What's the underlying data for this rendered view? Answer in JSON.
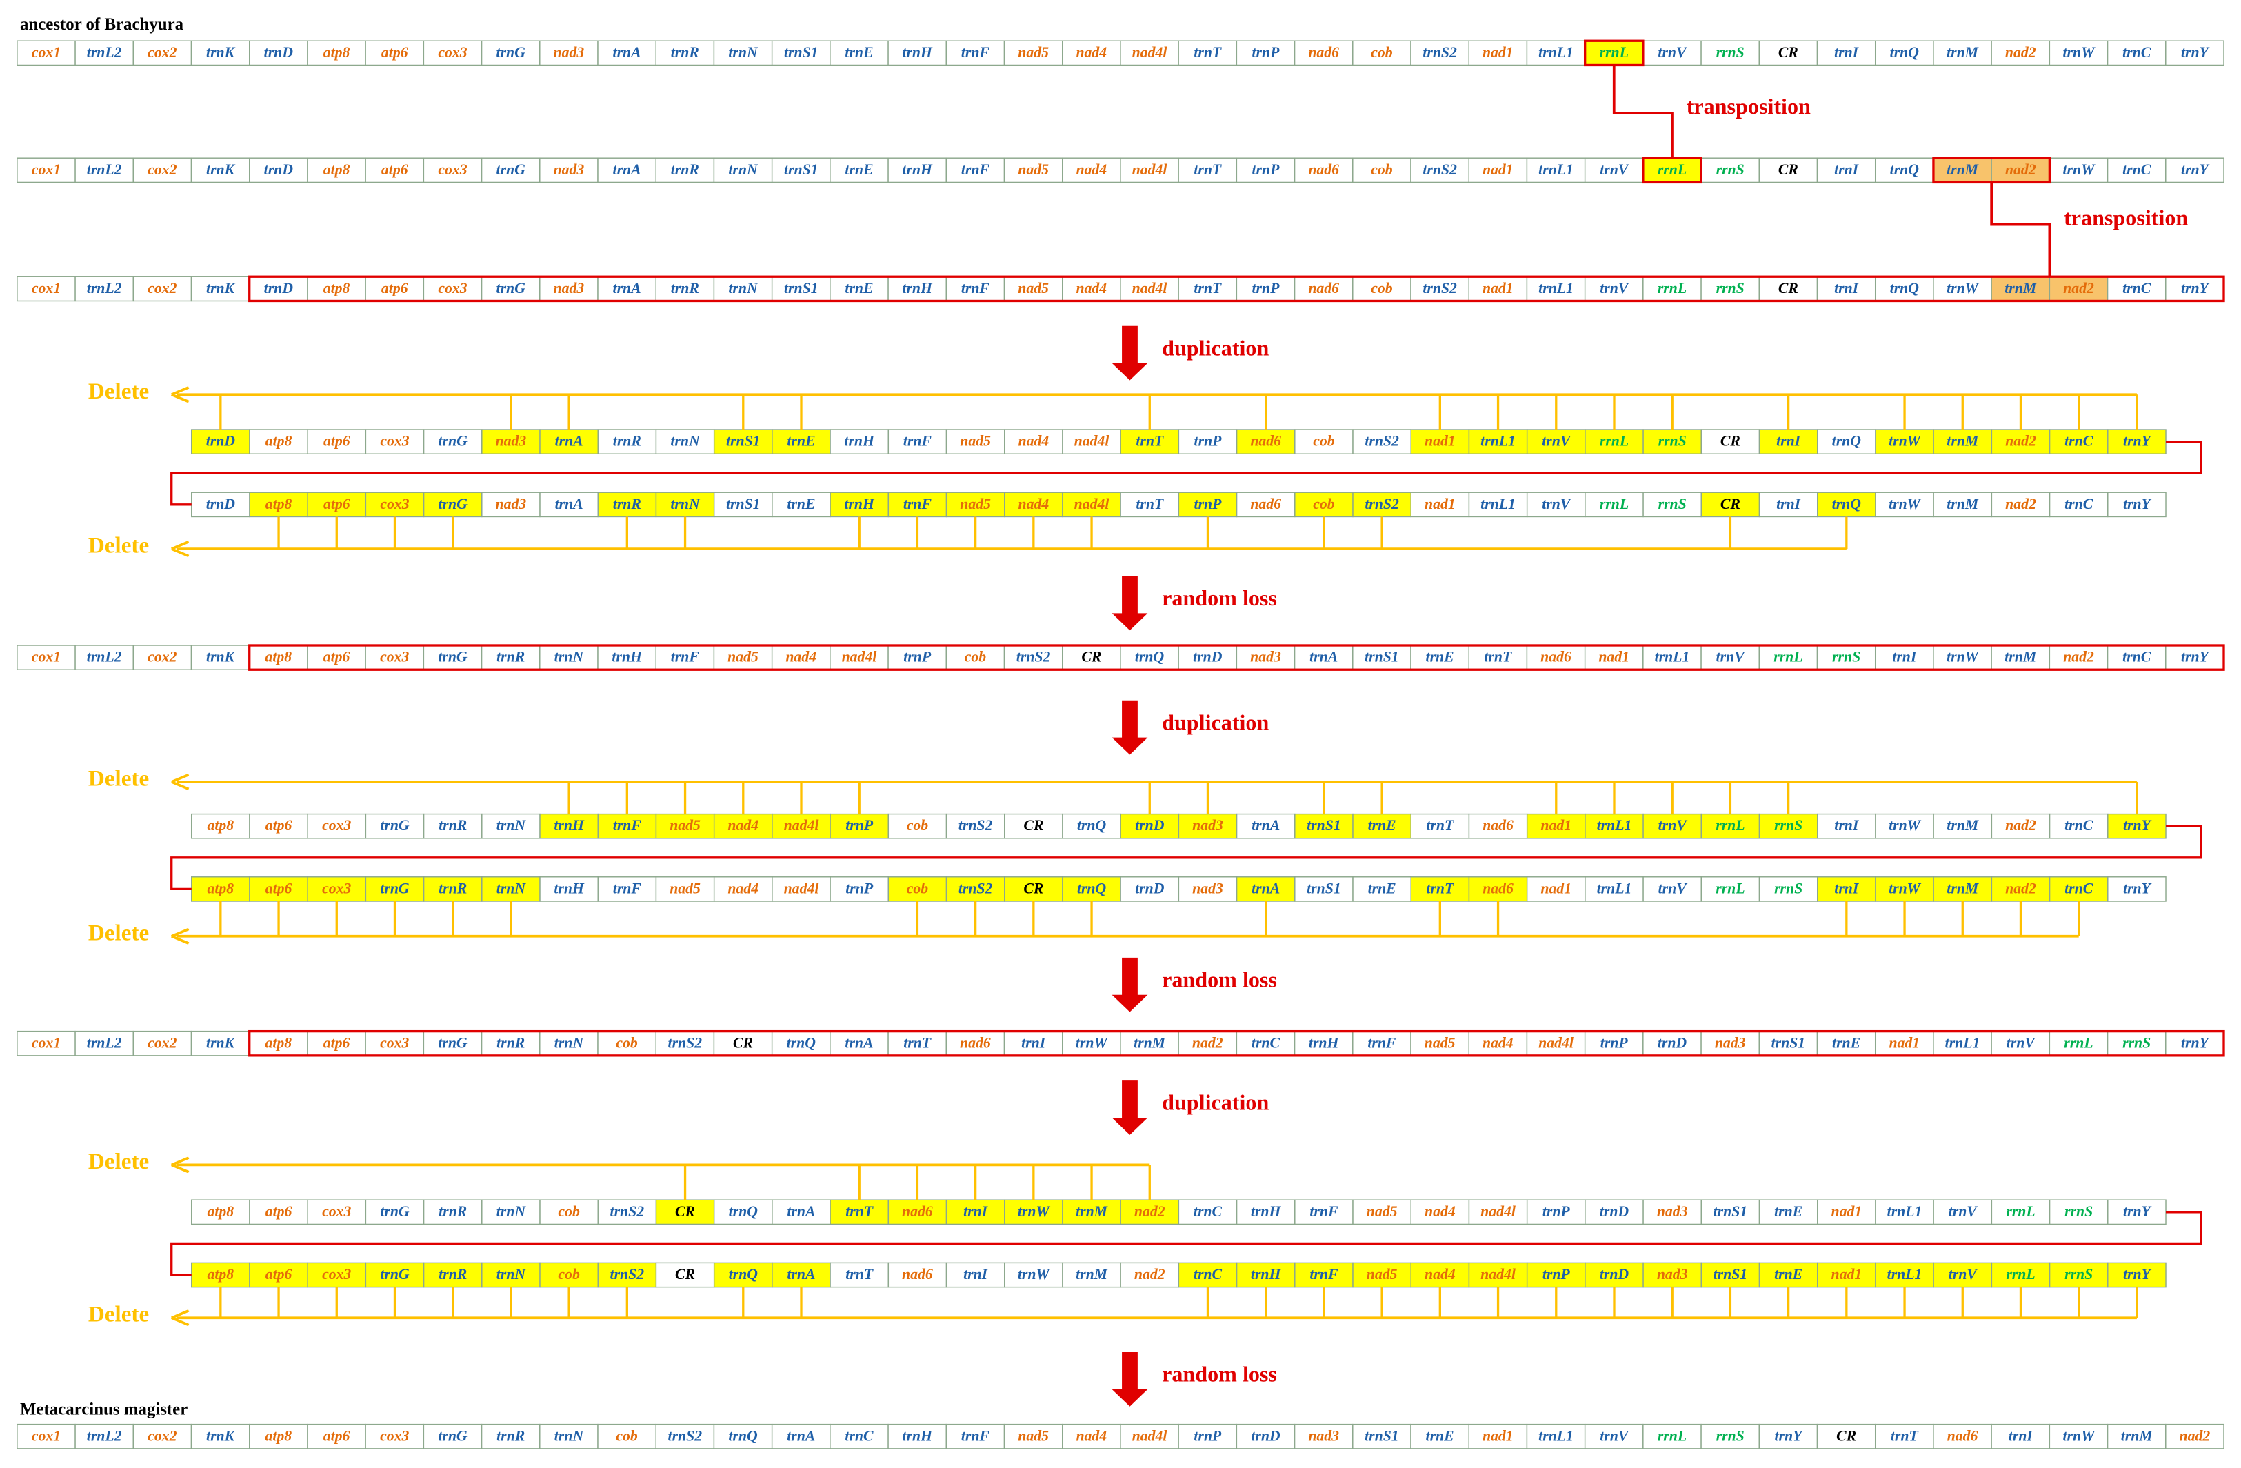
{
  "title_top": "ancestor of Brachyura",
  "title_bottom": "Metacarcinus magister",
  "transpositions": [
    "transposition",
    "transposition"
  ],
  "steps": [
    "duplication",
    "random loss",
    "duplication",
    "random loss",
    "duplication",
    "random loss"
  ],
  "highlight_color": "#ffff00",
  "block_color": "#f8c36b",
  "frame_color": "#e00000",
  "delete_color": "#ffc000",
  "label_colors": {
    "cox1": "#e46c0a",
    "cox2": "#e46c0a",
    "atp8": "#e46c0a",
    "atp6": "#e46c0a",
    "cox3": "#e46c0a",
    "nad3": "#e46c0a",
    "nad5": "#e46c0a",
    "nad4": "#e46c0a",
    "nad4l": "#e46c0a",
    "nad6": "#e46c0a",
    "cob": "#e46c0a",
    "nad1": "#e46c0a",
    "nad2": "#e46c0a",
    "rrnL": "#00b050",
    "rrnS": "#00b050",
    "CR": "#000000",
    "trnL2": "#1f5fa8",
    "trnK": "#1f5fa8",
    "trnD": "#1f5fa8",
    "trnG": "#1f5fa8",
    "trnA": "#1f5fa8",
    "trnR": "#1f5fa8",
    "trnN": "#1f5fa8",
    "trnS1": "#1f5fa8",
    "trnE": "#1f5fa8",
    "trnH": "#1f5fa8",
    "trnF": "#1f5fa8",
    "trnT": "#1f5fa8",
    "trnP": "#1f5fa8",
    "trnS2": "#1f5fa8",
    "trnL1": "#1f5fa8",
    "trnV": "#1f5fa8",
    "trnI": "#1f5fa8",
    "trnQ": "#1f5fa8",
    "trnM": "#1f5fa8",
    "trnW": "#1f5fa8",
    "trnC": "#1f5fa8",
    "trnY": "#1f5fa8"
  },
  "rows": [
    {
      "genes": [
        "cox1",
        "trnL2",
        "cox2",
        "trnK",
        "trnD",
        "atp8",
        "atp6",
        "cox3",
        "trnG",
        "nad3",
        "trnA",
        "trnR",
        "trnN",
        "trnS1",
        "trnE",
        "trnH",
        "trnF",
        "nad5",
        "nad4",
        "nad4l",
        "trnT",
        "trnP",
        "nad6",
        "cob",
        "trnS2",
        "nad1",
        "trnL1",
        "rrnL",
        "trnV",
        "rrnS",
        "CR",
        "trnI",
        "trnQ",
        "trnM",
        "nad2",
        "trnW",
        "trnC",
        "trnY"
      ],
      "yellow": [
        27
      ],
      "orange": [],
      "frames": [
        [
          27,
          27
        ]
      ]
    },
    {
      "genes": [
        "cox1",
        "trnL2",
        "cox2",
        "trnK",
        "trnD",
        "atp8",
        "atp6",
        "cox3",
        "trnG",
        "nad3",
        "trnA",
        "trnR",
        "trnN",
        "trnS1",
        "trnE",
        "trnH",
        "trnF",
        "nad5",
        "nad4",
        "nad4l",
        "trnT",
        "trnP",
        "nad6",
        "cob",
        "trnS2",
        "nad1",
        "trnL1",
        "trnV",
        "rrnL",
        "rrnS",
        "CR",
        "trnI",
        "trnQ",
        "trnM",
        "nad2",
        "trnW",
        "trnC",
        "trnY"
      ],
      "yellow": [
        28
      ],
      "orange": [
        33,
        34
      ],
      "frames": [
        [
          28,
          28
        ],
        [
          33,
          34
        ]
      ]
    },
    {
      "genes": [
        "cox1",
        "trnL2",
        "cox2",
        "trnK",
        "trnD",
        "atp8",
        "atp6",
        "cox3",
        "trnG",
        "nad3",
        "trnA",
        "trnR",
        "trnN",
        "trnS1",
        "trnE",
        "trnH",
        "trnF",
        "nad5",
        "nad4",
        "nad4l",
        "trnT",
        "trnP",
        "nad6",
        "cob",
        "trnS2",
        "nad1",
        "trnL1",
        "trnV",
        "rrnL",
        "rrnS",
        "CR",
        "trnI",
        "trnQ",
        "trnW",
        "trnM",
        "nad2",
        "trnC",
        "trnY"
      ],
      "yellow": [],
      "orange": [
        34,
        35
      ],
      "frames": [
        [
          4,
          37
        ]
      ]
    },
    {
      "genes": [
        "trnD",
        "atp8",
        "atp6",
        "cox3",
        "trnG",
        "nad3",
        "trnA",
        "trnR",
        "trnN",
        "trnS1",
        "trnE",
        "trnH",
        "trnF",
        "nad5",
        "nad4",
        "nad4l",
        "trnT",
        "trnP",
        "nad6",
        "cob",
        "trnS2",
        "nad1",
        "trnL1",
        "trnV",
        "rrnL",
        "rrnS",
        "CR",
        "trnI",
        "trnQ",
        "trnW",
        "trnM",
        "nad2",
        "trnC",
        "trnY"
      ],
      "yellow": [
        0,
        5,
        6,
        9,
        10,
        16,
        18,
        21,
        22,
        23,
        24,
        25,
        27,
        29,
        30,
        31,
        32,
        33
      ],
      "orange": [],
      "frames": [],
      "delete": "Delete"
    },
    {
      "genes": [
        "trnD",
        "atp8",
        "atp6",
        "cox3",
        "trnG",
        "nad3",
        "trnA",
        "trnR",
        "trnN",
        "trnS1",
        "trnE",
        "trnH",
        "trnF",
        "nad5",
        "nad4",
        "nad4l",
        "trnT",
        "trnP",
        "nad6",
        "cob",
        "trnS2",
        "nad1",
        "trnL1",
        "trnV",
        "rrnL",
        "rrnS",
        "CR",
        "trnI",
        "trnQ",
        "trnW",
        "trnM",
        "nad2",
        "trnC",
        "trnY"
      ],
      "yellow": [
        1,
        2,
        3,
        4,
        7,
        8,
        11,
        12,
        13,
        14,
        15,
        17,
        19,
        20,
        26,
        28
      ],
      "orange": [],
      "frames": [],
      "delete": "Delete"
    },
    {
      "genes": [
        "cox1",
        "trnL2",
        "cox2",
        "trnK",
        "atp8",
        "atp6",
        "cox3",
        "trnG",
        "trnR",
        "trnN",
        "trnH",
        "trnF",
        "nad5",
        "nad4",
        "nad4l",
        "trnP",
        "cob",
        "trnS2",
        "CR",
        "trnQ",
        "trnD",
        "nad3",
        "trnA",
        "trnS1",
        "trnE",
        "trnT",
        "nad6",
        "nad1",
        "trnL1",
        "trnV",
        "rrnL",
        "rrnS",
        "trnI",
        "trnW",
        "trnM",
        "nad2",
        "trnC",
        "trnY"
      ],
      "yellow": [],
      "orange": [],
      "frames": [
        [
          4,
          37
        ]
      ]
    },
    {
      "genes": [
        "atp8",
        "atp6",
        "cox3",
        "trnG",
        "trnR",
        "trnN",
        "trnH",
        "trnF",
        "nad5",
        "nad4",
        "nad4l",
        "trnP",
        "cob",
        "trnS2",
        "CR",
        "trnQ",
        "trnD",
        "nad3",
        "trnA",
        "trnS1",
        "trnE",
        "trnT",
        "nad6",
        "nad1",
        "trnL1",
        "trnV",
        "rrnL",
        "rrnS",
        "trnI",
        "trnW",
        "trnM",
        "nad2",
        "trnC",
        "trnY"
      ],
      "yellow": [
        6,
        7,
        8,
        9,
        10,
        11,
        16,
        17,
        19,
        20,
        23,
        24,
        25,
        26,
        27,
        33
      ],
      "orange": [],
      "frames": [],
      "delete": "Delete"
    },
    {
      "genes": [
        "atp8",
        "atp6",
        "cox3",
        "trnG",
        "trnR",
        "trnN",
        "trnH",
        "trnF",
        "nad5",
        "nad4",
        "nad4l",
        "trnP",
        "cob",
        "trnS2",
        "CR",
        "trnQ",
        "trnD",
        "nad3",
        "trnA",
        "trnS1",
        "trnE",
        "trnT",
        "nad6",
        "nad1",
        "trnL1",
        "trnV",
        "rrnL",
        "rrnS",
        "trnI",
        "trnW",
        "trnM",
        "nad2",
        "trnC",
        "trnY"
      ],
      "yellow": [
        0,
        1,
        2,
        3,
        4,
        5,
        12,
        13,
        14,
        15,
        18,
        21,
        22,
        28,
        29,
        30,
        31,
        32
      ],
      "orange": [],
      "frames": [],
      "delete": "Delete"
    },
    {
      "genes": [
        "cox1",
        "trnL2",
        "cox2",
        "trnK",
        "atp8",
        "atp6",
        "cox3",
        "trnG",
        "trnR",
        "trnN",
        "cob",
        "trnS2",
        "CR",
        "trnQ",
        "trnA",
        "trnT",
        "nad6",
        "trnI",
        "trnW",
        "trnM",
        "nad2",
        "trnC",
        "trnH",
        "trnF",
        "nad5",
        "nad4",
        "nad4l",
        "trnP",
        "trnD",
        "nad3",
        "trnS1",
        "trnE",
        "nad1",
        "trnL1",
        "trnV",
        "rrnL",
        "rrnS",
        "trnY"
      ],
      "yellow": [],
      "orange": [],
      "frames": [
        [
          4,
          37
        ]
      ]
    },
    {
      "genes": [
        "atp8",
        "atp6",
        "cox3",
        "trnG",
        "trnR",
        "trnN",
        "cob",
        "trnS2",
        "CR",
        "trnQ",
        "trnA",
        "trnT",
        "nad6",
        "trnI",
        "trnW",
        "trnM",
        "nad2",
        "trnC",
        "trnH",
        "trnF",
        "nad5",
        "nad4",
        "nad4l",
        "trnP",
        "trnD",
        "nad3",
        "trnS1",
        "trnE",
        "nad1",
        "trnL1",
        "trnV",
        "rrnL",
        "rrnS",
        "trnY"
      ],
      "yellow": [
        8,
        11,
        12,
        13,
        14,
        15,
        16
      ],
      "orange": [],
      "frames": [],
      "delete": "Delete"
    },
    {
      "genes": [
        "atp8",
        "atp6",
        "cox3",
        "trnG",
        "trnR",
        "trnN",
        "cob",
        "trnS2",
        "CR",
        "trnQ",
        "trnA",
        "trnT",
        "nad6",
        "trnI",
        "trnW",
        "trnM",
        "nad2",
        "trnC",
        "trnH",
        "trnF",
        "nad5",
        "nad4",
        "nad4l",
        "trnP",
        "trnD",
        "nad3",
        "trnS1",
        "trnE",
        "nad1",
        "trnL1",
        "trnV",
        "rrnL",
        "rrnS",
        "trnY"
      ],
      "yellow": [
        0,
        1,
        2,
        3,
        4,
        5,
        6,
        7,
        9,
        10,
        17,
        18,
        19,
        20,
        21,
        22,
        23,
        24,
        25,
        26,
        27,
        28,
        29,
        30,
        31,
        32,
        33
      ],
      "orange": [],
      "frames": [],
      "delete": "Delete"
    },
    {
      "genes": [
        "cox1",
        "trnL2",
        "cox2",
        "trnK",
        "atp8",
        "atp6",
        "cox3",
        "trnG",
        "trnR",
        "trnN",
        "cob",
        "trnS2",
        "trnQ",
        "trnA",
        "trnC",
        "trnH",
        "trnF",
        "nad5",
        "nad4",
        "nad4l",
        "trnP",
        "trnD",
        "nad3",
        "trnS1",
        "trnE",
        "nad1",
        "trnL1",
        "trnV",
        "rrnL",
        "rrnS",
        "trnY",
        "CR",
        "trnT",
        "nad6",
        "trnI",
        "trnW",
        "trnM",
        "nad2"
      ],
      "yellow": [],
      "orange": [],
      "frames": []
    }
  ]
}
